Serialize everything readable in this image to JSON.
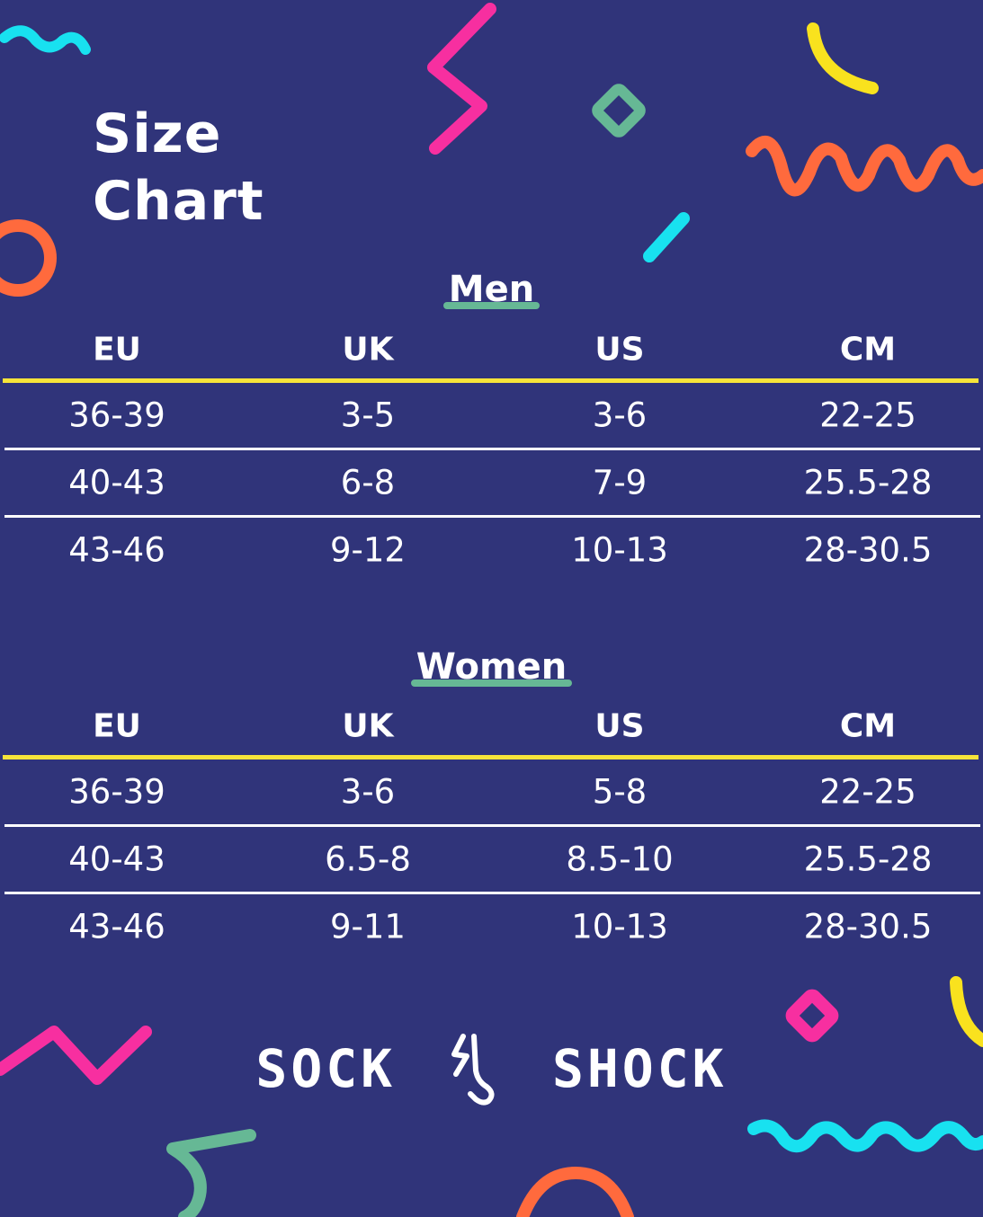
{
  "title": [
    "Size",
    "Chart"
  ],
  "colors": {
    "background": "#30347a",
    "header_rule": "#f7e43a",
    "row_rule": "#ffffff",
    "underline": "#66b895",
    "pink": "#f72fa0",
    "yellow": "#f9e21e",
    "orange": "#ff6a3d",
    "cyan": "#18e1f0",
    "green": "#66b895"
  },
  "columns": [
    "EU",
    "UK",
    "US",
    "CM"
  ],
  "sections": [
    {
      "title": "Men",
      "rows": [
        [
          "36-39",
          "3-5",
          "3-6",
          "22-25"
        ],
        [
          "40-43",
          "6-8",
          "7-9",
          "25.5-28"
        ],
        [
          "43-46",
          "9-12",
          "10-13",
          "28-30.5"
        ]
      ]
    },
    {
      "title": "Women",
      "rows": [
        [
          "36-39",
          "3-6",
          "5-8",
          "22-25"
        ],
        [
          "40-43",
          "6.5-8",
          "8.5-10",
          "25.5-28"
        ],
        [
          "43-46",
          "9-11",
          "10-13",
          "28-30.5"
        ]
      ]
    }
  ],
  "brand": {
    "left": "SOCK",
    "right": "SHOCK",
    "icon": "sock-bolt-icon"
  }
}
